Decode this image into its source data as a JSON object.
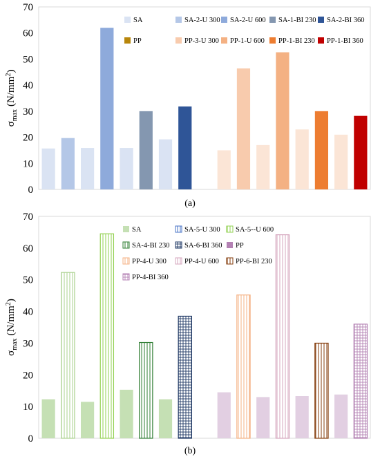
{
  "chart_data": [
    {
      "type": "bar",
      "panel_label": "(a)",
      "ylabel_main": "σ",
      "ylabel_sub": "max",
      "ylabel_unit": "(N/mm",
      "ylabel_exp": "2",
      "ylabel_close": ")",
      "ylim": [
        0,
        70
      ],
      "yticks": [
        "0",
        "10",
        "20",
        "30",
        "40",
        "50",
        "60",
        "70"
      ],
      "grid": false,
      "legend_position": "top",
      "series": [
        {
          "name": "SA",
          "value": 15.7,
          "color": "#dae3f3",
          "pattern": "solid",
          "legend_row": 0
        },
        {
          "name": "SA-2-U 300",
          "value": 19.7,
          "color": "#b4c7e7",
          "pattern": "solid",
          "legend_row": 0
        },
        {
          "name": "",
          "value": 15.9,
          "color": "#dae3f3",
          "pattern": "solid",
          "ref": true
        },
        {
          "name": "SA-2-U 600",
          "value": 62.0,
          "color": "#8eaadb",
          "pattern": "solid",
          "legend_row": 0
        },
        {
          "name": "",
          "value": 15.9,
          "color": "#dae3f3",
          "pattern": "solid",
          "ref": true
        },
        {
          "name": "SA-1-BI 230",
          "value": 30.0,
          "color": "#8497b0",
          "pattern": "solid",
          "legend_row": 0
        },
        {
          "name": "",
          "value": 19.2,
          "color": "#dae3f3",
          "pattern": "solid",
          "ref": true
        },
        {
          "name": "SA-2-BI 360",
          "value": 31.8,
          "color": "#2f5597",
          "pattern": "solid",
          "legend_row": 0
        },
        {
          "name": "",
          "value": null,
          "gap": true
        },
        {
          "name": "PP",
          "value": 15.0,
          "color": "#fbe5d6",
          "pattern": "solid",
          "legend_row": 1,
          "legend_color": "#b8860b"
        },
        {
          "name": "PP-3-U 300",
          "value": 46.4,
          "color": "#f8cbad",
          "pattern": "solid",
          "legend_row": 1
        },
        {
          "name": "",
          "value": 17.0,
          "color": "#fbe5d6",
          "pattern": "solid",
          "ref": true
        },
        {
          "name": "PP-1-U 600",
          "value": 52.6,
          "color": "#f4b183",
          "pattern": "solid",
          "legend_row": 1
        },
        {
          "name": "",
          "value": 23.0,
          "color": "#fbe5d6",
          "pattern": "solid",
          "ref": true
        },
        {
          "name": "PP-1-BI 230",
          "value": 30.0,
          "color": "#ed7d31",
          "pattern": "solid",
          "legend_row": 1
        },
        {
          "name": "",
          "value": 21.0,
          "color": "#fbe5d6",
          "pattern": "solid",
          "ref": true
        },
        {
          "name": "PP-1-BI 360",
          "value": 28.2,
          "color": "#c00000",
          "pattern": "solid",
          "legend_row": 1
        }
      ]
    },
    {
      "type": "bar",
      "panel_label": "(b)",
      "ylabel_main": "σ",
      "ylabel_sub": "max",
      "ylabel_unit": "(N/mm",
      "ylabel_exp": "2",
      "ylabel_close": ")",
      "ylim": [
        0,
        70
      ],
      "yticks": [
        "0",
        "10",
        "20",
        "30",
        "40",
        "50",
        "60",
        "70"
      ],
      "grid": false,
      "legend_position": "top",
      "series": [
        {
          "name": "SA",
          "value": 12.3,
          "color": "#c5e0b4",
          "pattern": "solid",
          "legend_row": 0
        },
        {
          "name": "SA-5-U 300",
          "value": 52.3,
          "color": "#a9d18e",
          "pattern": "vlines",
          "legend_row": 0,
          "legend_color": "#4472c4"
        },
        {
          "name": "",
          "value": 11.5,
          "color": "#c5e0b4",
          "pattern": "solid",
          "ref": true
        },
        {
          "name": "SA-5--U 600",
          "value": 64.5,
          "color": "#92d050",
          "pattern": "vlines",
          "legend_row": 0
        },
        {
          "name": "",
          "value": 15.3,
          "color": "#c5e0b4",
          "pattern": "solid",
          "ref": true
        },
        {
          "name": "SA-4-BI 230",
          "value": 30.2,
          "color": "#2e7d32",
          "pattern": "vlines",
          "legend_row": 1
        },
        {
          "name": "",
          "value": 12.3,
          "color": "#c5e0b4",
          "pattern": "solid",
          "ref": true
        },
        {
          "name": "SA-6-BI 360",
          "value": 38.5,
          "color": "#1f3864",
          "pattern": "grid",
          "legend_row": 1
        },
        {
          "name": "",
          "value": null,
          "gap": true
        },
        {
          "name": "PP",
          "value": 14.5,
          "color": "#e2cfe2",
          "pattern": "solid",
          "legend_row": 1,
          "legend_color": "#b482b4"
        },
        {
          "name": "PP-4-U 300",
          "value": 45.2,
          "color": "#f4b183",
          "pattern": "vlines",
          "legend_row": 2
        },
        {
          "name": "",
          "value": 13.0,
          "color": "#e2cfe2",
          "pattern": "solid",
          "ref": true
        },
        {
          "name": "PP-4-U 600",
          "value": 64.2,
          "color": "#d5a6bd",
          "pattern": "vlines",
          "legend_row": 2
        },
        {
          "name": "",
          "value": 13.3,
          "color": "#e2cfe2",
          "pattern": "solid",
          "ref": true
        },
        {
          "name": "PP-6-BI 230",
          "value": 30.0,
          "color": "#843c0c",
          "pattern": "vlines",
          "legend_row": 2
        },
        {
          "name": "",
          "value": 13.8,
          "color": "#e2cfe2",
          "pattern": "solid",
          "ref": true
        },
        {
          "name": "PP-4-BI 360",
          "value": 36.0,
          "color": "#b482b4",
          "pattern": "grid",
          "legend_row": 3
        }
      ]
    }
  ]
}
